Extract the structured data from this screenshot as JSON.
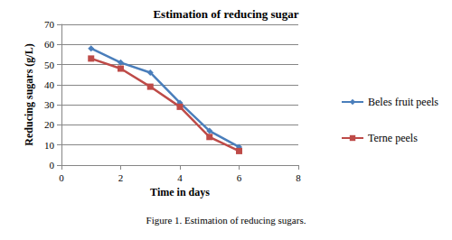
{
  "chart_data": {
    "type": "line",
    "title": "Estimation of reducing sugar",
    "x_label": "Time in days",
    "y_label": "Reducing sugars (g/L)",
    "caption": "Figure 1. Estimation of reducing sugars.",
    "x": [
      1,
      2,
      3,
      4,
      5,
      6
    ],
    "series": [
      {
        "name": "Beles fruit peels",
        "color": "#4a7ebb",
        "marker": "diamond",
        "values": [
          58,
          51,
          46,
          31,
          17,
          9
        ]
      },
      {
        "name": "Terne peels",
        "color": "#be4b48",
        "marker": "square",
        "values": [
          53,
          48,
          39,
          29,
          14,
          7
        ]
      }
    ],
    "xlim": [
      0,
      8
    ],
    "xticks": [
      0,
      2,
      4,
      6,
      8
    ],
    "ylim": [
      0,
      70
    ],
    "yticks": [
      0,
      10,
      20,
      30,
      40,
      50,
      60,
      70
    ],
    "grid": true,
    "legend": "right"
  }
}
